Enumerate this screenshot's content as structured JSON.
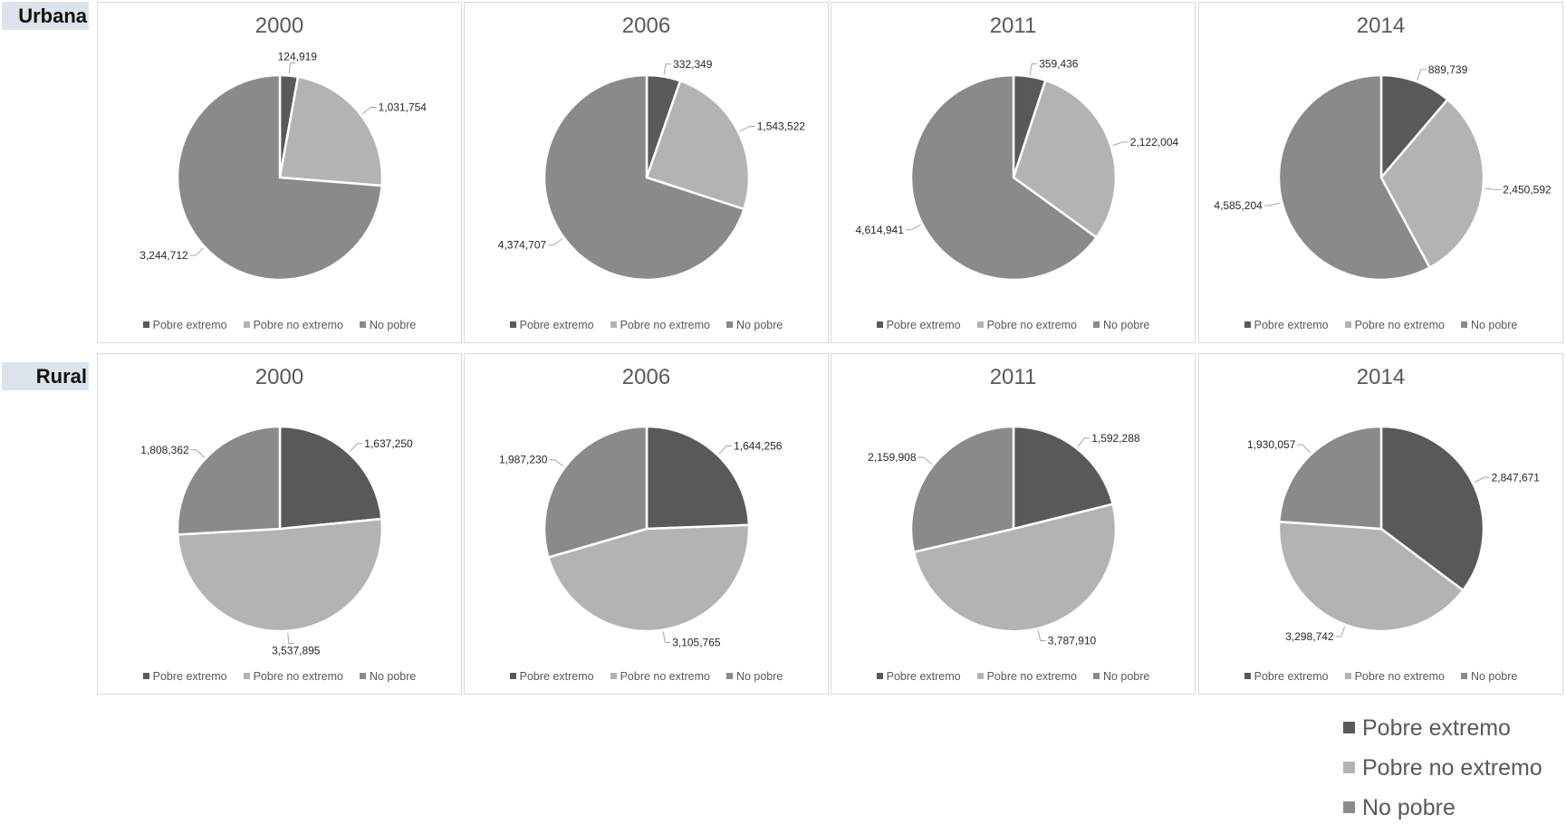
{
  "row_labels": {
    "urbana": "Urbana",
    "rural": "Rural"
  },
  "legend": {
    "items": [
      "Pobre extremo",
      "Pobre no extremo",
      "No pobre"
    ],
    "colors": [
      "#595959",
      "#b3b3b3",
      "#8a8a8a"
    ]
  },
  "chart_data": [
    {
      "type": "pie",
      "title": "2000",
      "group": "Urbana",
      "categories": [
        "Pobre extremo",
        "Pobre no extremo",
        "No pobre"
      ],
      "values": [
        124919,
        1031754,
        3244712
      ],
      "labels": [
        "124,919",
        "1,031,754",
        "3,244,712"
      ]
    },
    {
      "type": "pie",
      "title": "2006",
      "group": "Urbana",
      "categories": [
        "Pobre extremo",
        "Pobre no extremo",
        "No pobre"
      ],
      "values": [
        332349,
        1543522,
        4374707
      ],
      "labels": [
        "332,349",
        "1,543,522",
        "4,374,707"
      ]
    },
    {
      "type": "pie",
      "title": "2011",
      "group": "Urbana",
      "categories": [
        "Pobre extremo",
        "Pobre no extremo",
        "No pobre"
      ],
      "values": [
        359436,
        2122004,
        4614941
      ],
      "labels": [
        "359,436",
        "2,122,004",
        "4,614,941"
      ]
    },
    {
      "type": "pie",
      "title": "2014",
      "group": "Urbana",
      "categories": [
        "Pobre extremo",
        "Pobre no extremo",
        "No pobre"
      ],
      "values": [
        889739,
        2450592,
        4585204
      ],
      "labels": [
        "889,739",
        "2,450,592",
        "4,585,204"
      ]
    },
    {
      "type": "pie",
      "title": "2000",
      "group": "Rural",
      "categories": [
        "Pobre extremo",
        "Pobre no extremo",
        "No pobre"
      ],
      "values": [
        1637250,
        3537895,
        1808362
      ],
      "labels": [
        "1,637,250",
        "3,537,895",
        "1,808,362"
      ]
    },
    {
      "type": "pie",
      "title": "2006",
      "group": "Rural",
      "categories": [
        "Pobre extremo",
        "Pobre no extremo",
        "No pobre"
      ],
      "values": [
        1644256,
        3105765,
        1987230
      ],
      "labels": [
        "1,644,256",
        "3,105,765",
        "1,987,230"
      ]
    },
    {
      "type": "pie",
      "title": "2011",
      "group": "Rural",
      "categories": [
        "Pobre extremo",
        "Pobre no extremo",
        "No pobre"
      ],
      "values": [
        1592288,
        3787910,
        2159908
      ],
      "labels": [
        "1,592,288",
        "3,787,910",
        "2,159,908"
      ]
    },
    {
      "type": "pie",
      "title": "2014",
      "group": "Rural",
      "categories": [
        "Pobre extremo",
        "Pobre no extremo",
        "No pobre"
      ],
      "values": [
        2847671,
        3298742,
        1930057
      ],
      "labels": [
        "2,847,671",
        "3,298,742",
        "1,930,057"
      ]
    }
  ]
}
